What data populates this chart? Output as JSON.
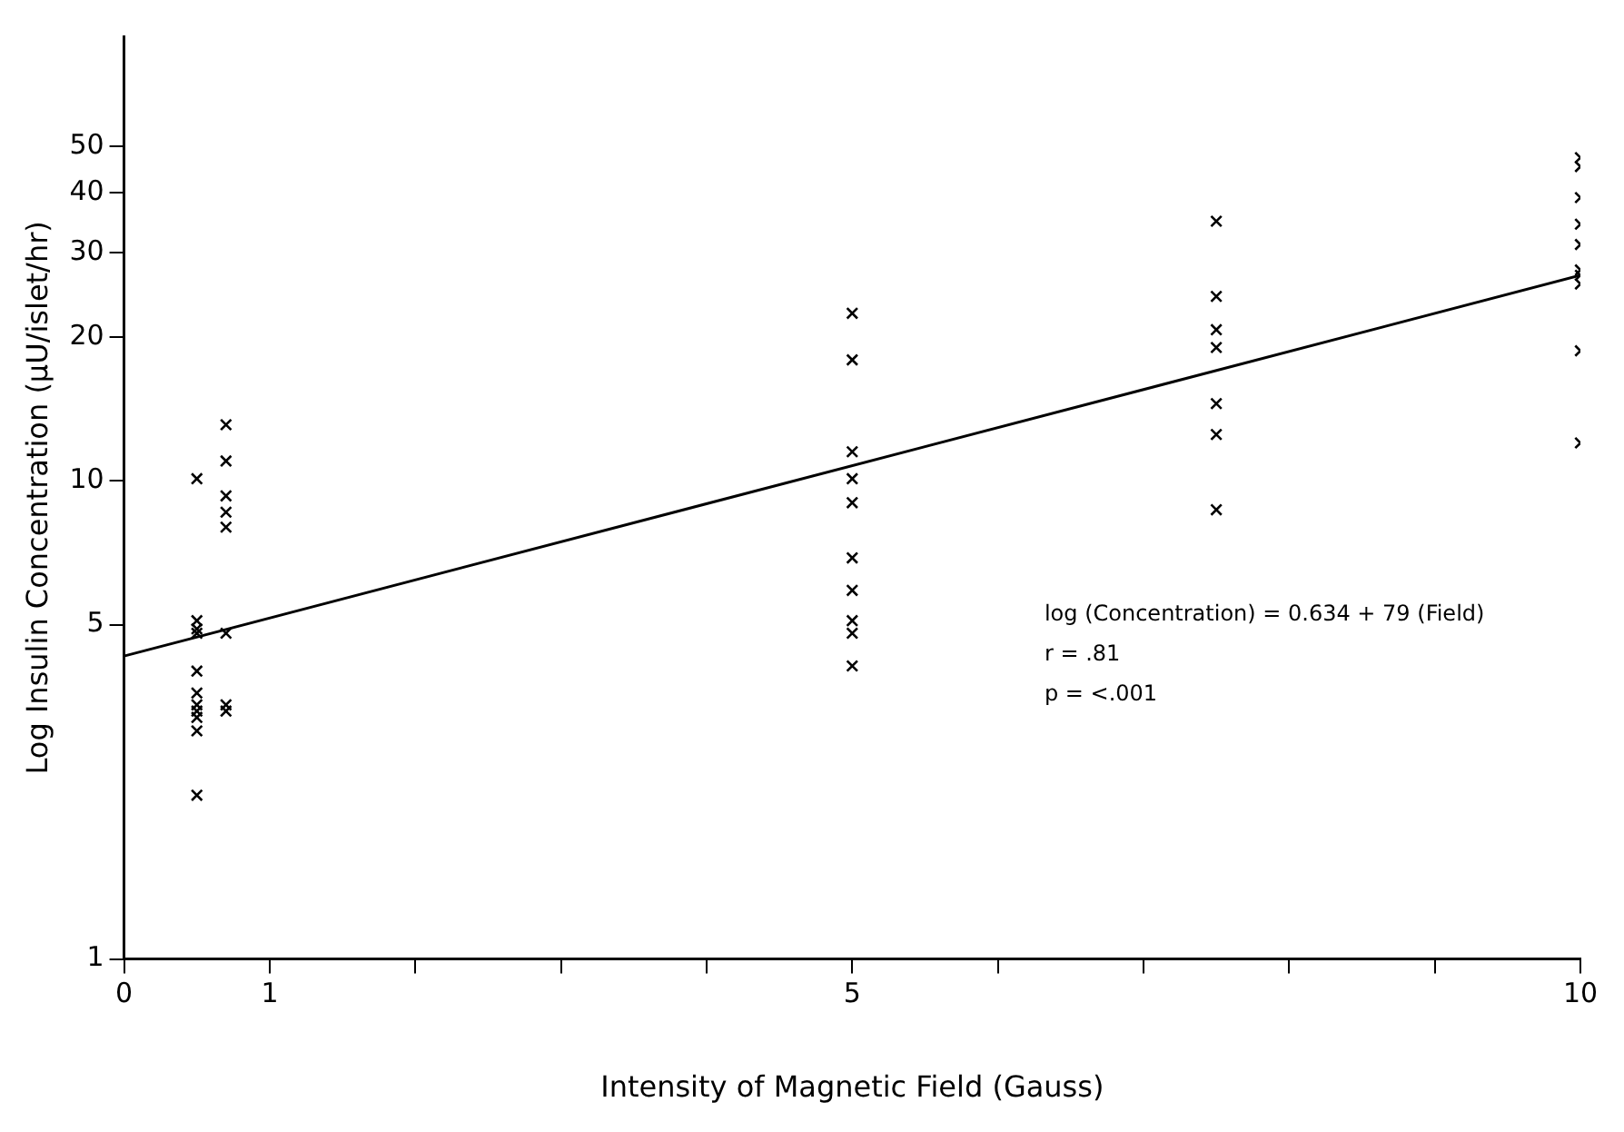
{
  "chart_data": {
    "type": "scatter",
    "xlabel": "Intensity of Magnetic Field (Gauss)",
    "ylabel": "Log Insulin Concentration (μU/islet/hr)",
    "log": "y",
    "grid": false,
    "legend": false,
    "marker": "cross",
    "xlim": [
      0,
      10
    ],
    "xticks": [
      0,
      1,
      {
        "value": 2,
        "label": null
      },
      {
        "value": 3,
        "label": null
      },
      {
        "value": 4,
        "label": null
      },
      5,
      {
        "value": 6,
        "label": null
      },
      {
        "value": 7,
        "label": null
      },
      {
        "value": 8,
        "label": null
      },
      {
        "value": 9,
        "label": null
      },
      10
    ],
    "ylim": [
      1,
      85
    ],
    "yticks": [
      1,
      5,
      10,
      20,
      30,
      40,
      50
    ],
    "series": [
      {
        "color": "#000000",
        "x": [
          0.5,
          0.5,
          0.5,
          0.5,
          0.5,
          0.5,
          0.5,
          0.5,
          0.5,
          0.5,
          0.5,
          0.7,
          0.7,
          0.7,
          0.7,
          0.7,
          0.7,
          0.7,
          0.7,
          5,
          5,
          5,
          5,
          5,
          5,
          5,
          5,
          5,
          5,
          7.5,
          7.5,
          7.5,
          7.5,
          7.5,
          7.5,
          7.5,
          10,
          10,
          10,
          10,
          10,
          10,
          10,
          10,
          10,
          10
        ],
        "values": [
          10.1,
          5.1,
          4.9,
          4.8,
          4.0,
          3.6,
          3.4,
          3.3,
          3.2,
          3.0,
          2.2,
          13.1,
          11.0,
          9.3,
          8.6,
          8.0,
          4.8,
          3.4,
          3.3,
          22.4,
          17.9,
          11.5,
          10.1,
          9.0,
          6.9,
          5.9,
          5.1,
          4.8,
          4.1,
          34.9,
          24.3,
          20.7,
          19.0,
          14.5,
          12.5,
          8.7,
          47.4,
          45.4,
          39.1,
          34.4,
          31.2,
          27.6,
          26.9,
          25.8,
          18.7,
          12.0
        ]
      },
      {
        "type": "line",
        "color": "#000000",
        "marker": "none",
        "x": [
          0,
          10
        ],
        "values": [
          4.3,
          26.9
        ]
      }
    ],
    "annotations": [
      "log (Concentration) = 0.634 + 79 (Field)",
      "r = .81",
      "p = <.001"
    ]
  }
}
